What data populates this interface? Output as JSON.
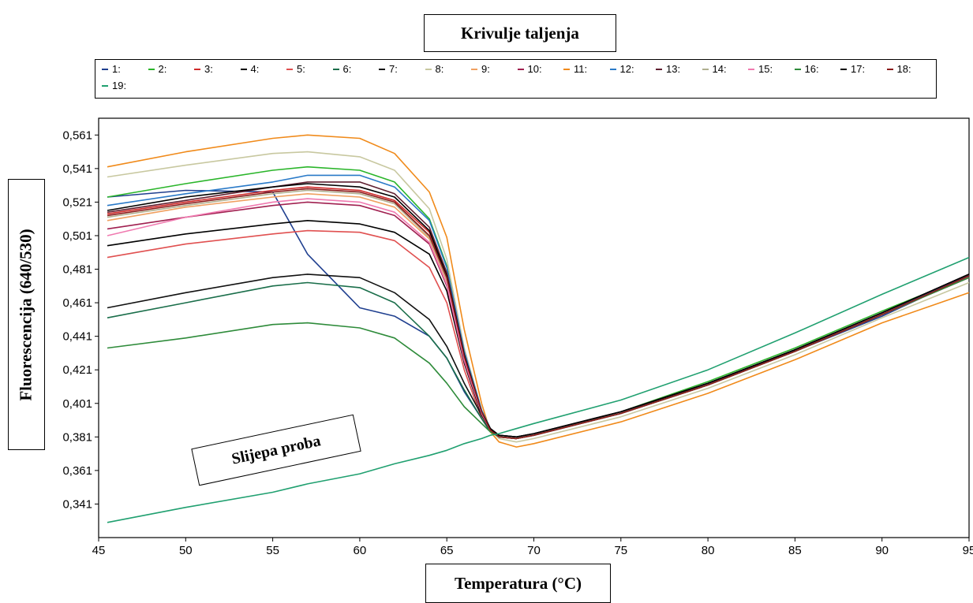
{
  "chart_data": {
    "type": "line",
    "title": "Krivulje taljenja",
    "xlabel": "Temperatura (°C)",
    "ylabel": "Fluorescencija (640/530)",
    "annotation": "Slijepa proba",
    "xlim": [
      45,
      95
    ],
    "ylim": [
      0.321,
      0.571
    ],
    "x_ticks": [
      "45",
      "50",
      "55",
      "60",
      "65",
      "70",
      "75",
      "80",
      "85",
      "90",
      "95"
    ],
    "y_ticks": [
      "0,341",
      "0,361",
      "0,381",
      "0,401",
      "0,421",
      "0,441",
      "0,461",
      "0,481",
      "0,501",
      "0,521",
      "0,541",
      "0,561"
    ],
    "grid": false,
    "legend_position": "top",
    "x": [
      45.5,
      50,
      55,
      57,
      60,
      62,
      64,
      65,
      66,
      67,
      67.5,
      68,
      69,
      70,
      75,
      80,
      85,
      90,
      95
    ],
    "series": [
      {
        "name": "1:",
        "color": "#1f3f8f",
        "values": [
          0.524,
          0.528,
          0.527,
          0.49,
          0.458,
          0.453,
          0.441,
          0.428,
          0.408,
          0.392,
          0.384,
          0.381,
          0.38,
          0.382,
          0.395,
          0.412,
          0.432,
          0.453,
          0.477
        ]
      },
      {
        "name": "2:",
        "color": "#2ab52a",
        "values": [
          0.524,
          0.532,
          0.54,
          0.542,
          0.54,
          0.533,
          0.511,
          0.483,
          0.433,
          0.397,
          0.386,
          0.382,
          0.381,
          0.383,
          0.396,
          0.414,
          0.434,
          0.456,
          0.477
        ]
      },
      {
        "name": "3:",
        "color": "#d02a2a",
        "values": [
          0.514,
          0.521,
          0.528,
          0.53,
          0.528,
          0.522,
          0.503,
          0.477,
          0.43,
          0.396,
          0.386,
          0.382,
          0.381,
          0.383,
          0.396,
          0.413,
          0.433,
          0.455,
          0.477
        ]
      },
      {
        "name": "4:",
        "color": "#000000",
        "values": [
          0.495,
          0.502,
          0.508,
          0.51,
          0.508,
          0.503,
          0.49,
          0.468,
          0.425,
          0.394,
          0.385,
          0.381,
          0.38,
          0.382,
          0.395,
          0.412,
          0.433,
          0.455,
          0.478
        ]
      },
      {
        "name": "5:",
        "color": "#e05050",
        "values": [
          0.488,
          0.496,
          0.502,
          0.504,
          0.503,
          0.498,
          0.482,
          0.461,
          0.421,
          0.392,
          0.384,
          0.381,
          0.38,
          0.382,
          0.395,
          0.412,
          0.432,
          0.454,
          0.476
        ]
      },
      {
        "name": "6:",
        "color": "#1a6e4a",
        "values": [
          0.452,
          0.461,
          0.471,
          0.473,
          0.47,
          0.461,
          0.441,
          0.428,
          0.409,
          0.392,
          0.384,
          0.381,
          0.38,
          0.382,
          0.395,
          0.412,
          0.432,
          0.454,
          0.476
        ]
      },
      {
        "name": "7:",
        "color": "#111111",
        "values": [
          0.458,
          0.467,
          0.476,
          0.478,
          0.476,
          0.467,
          0.451,
          0.435,
          0.413,
          0.394,
          0.385,
          0.381,
          0.38,
          0.382,
          0.395,
          0.413,
          0.433,
          0.455,
          0.477
        ]
      },
      {
        "name": "8:",
        "color": "#c8c8a0",
        "values": [
          0.536,
          0.543,
          0.55,
          0.551,
          0.548,
          0.54,
          0.517,
          0.487,
          0.434,
          0.397,
          0.385,
          0.38,
          0.378,
          0.38,
          0.393,
          0.41,
          0.43,
          0.452,
          0.473
        ]
      },
      {
        "name": "9:",
        "color": "#f0a060",
        "values": [
          0.51,
          0.518,
          0.524,
          0.526,
          0.524,
          0.518,
          0.499,
          0.474,
          0.428,
          0.396,
          0.385,
          0.381,
          0.38,
          0.382,
          0.395,
          0.412,
          0.432,
          0.454,
          0.476
        ]
      },
      {
        "name": "10:",
        "color": "#a02050",
        "values": [
          0.505,
          0.512,
          0.519,
          0.521,
          0.519,
          0.513,
          0.496,
          0.471,
          0.426,
          0.395,
          0.385,
          0.381,
          0.38,
          0.382,
          0.395,
          0.412,
          0.432,
          0.454,
          0.476
        ]
      },
      {
        "name": "11:",
        "color": "#f08a1a",
        "values": [
          0.542,
          0.551,
          0.559,
          0.561,
          0.559,
          0.55,
          0.527,
          0.5,
          0.445,
          0.401,
          0.384,
          0.378,
          0.375,
          0.377,
          0.39,
          0.407,
          0.427,
          0.449,
          0.467
        ]
      },
      {
        "name": "12:",
        "color": "#2a7ac8",
        "values": [
          0.519,
          0.526,
          0.533,
          0.537,
          0.537,
          0.53,
          0.51,
          0.482,
          0.432,
          0.397,
          0.386,
          0.382,
          0.381,
          0.383,
          0.396,
          0.413,
          0.433,
          0.455,
          0.477
        ]
      },
      {
        "name": "13:",
        "color": "#602030",
        "values": [
          0.515,
          0.522,
          0.53,
          0.533,
          0.533,
          0.526,
          0.506,
          0.479,
          0.43,
          0.396,
          0.386,
          0.382,
          0.381,
          0.383,
          0.396,
          0.413,
          0.433,
          0.455,
          0.478
        ]
      },
      {
        "name": "14:",
        "color": "#b0b090",
        "values": [
          0.512,
          0.519,
          0.526,
          0.528,
          0.526,
          0.52,
          0.5,
          0.475,
          0.429,
          0.396,
          0.385,
          0.381,
          0.38,
          0.382,
          0.395,
          0.412,
          0.432,
          0.454,
          0.476
        ]
      },
      {
        "name": "15:",
        "color": "#f07ab0",
        "values": [
          0.501,
          0.512,
          0.521,
          0.523,
          0.521,
          0.515,
          0.497,
          0.472,
          0.427,
          0.395,
          0.385,
          0.381,
          0.38,
          0.382,
          0.395,
          0.412,
          0.432,
          0.454,
          0.476
        ]
      },
      {
        "name": "16:",
        "color": "#2e8b3a",
        "values": [
          0.434,
          0.44,
          0.448,
          0.449,
          0.446,
          0.44,
          0.425,
          0.413,
          0.399,
          0.389,
          0.384,
          0.381,
          0.38,
          0.382,
          0.395,
          0.412,
          0.432,
          0.454,
          0.476
        ]
      },
      {
        "name": "17:",
        "color": "#000000",
        "values": [
          0.516,
          0.524,
          0.53,
          0.532,
          0.53,
          0.524,
          0.504,
          0.477,
          0.43,
          0.396,
          0.386,
          0.382,
          0.381,
          0.383,
          0.396,
          0.413,
          0.433,
          0.455,
          0.478
        ]
      },
      {
        "name": "18:",
        "color": "#8b1a1a",
        "values": [
          0.513,
          0.52,
          0.527,
          0.529,
          0.527,
          0.521,
          0.501,
          0.476,
          0.429,
          0.396,
          0.385,
          0.381,
          0.38,
          0.382,
          0.395,
          0.412,
          0.432,
          0.454,
          0.477
        ]
      },
      {
        "name": "19:",
        "color": "#20a070",
        "values": [
          0.33,
          0.339,
          0.348,
          0.353,
          0.359,
          0.365,
          0.37,
          0.373,
          0.377,
          0.38,
          0.382,
          0.383,
          0.386,
          0.389,
          0.403,
          0.421,
          0.443,
          0.466,
          0.488
        ]
      }
    ]
  }
}
